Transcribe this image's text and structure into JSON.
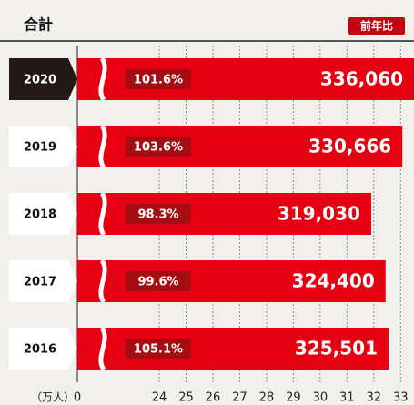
{
  "chart_data": {
    "type": "bar",
    "orientation": "horizontal",
    "title": "合計",
    "badge": "前年比",
    "categories": [
      "2020",
      "2019",
      "2018",
      "2017",
      "2016"
    ],
    "values": [
      33.606,
      33.0666,
      31.903,
      32.44,
      32.5501
    ],
    "value_labels": [
      "336,060",
      "330,666",
      "319,030",
      "324,400",
      "325,501"
    ],
    "ratios": [
      101.6,
      103.6,
      98.3,
      99.6,
      105.1
    ],
    "ratio_labels": [
      "101.6%",
      "103.6%",
      "98.3%",
      "99.6%",
      "105.1%"
    ],
    "highlight_index": 0,
    "color": "#e60012",
    "x_label": "（万人）",
    "xlim": [
      0,
      33.5
    ],
    "xticks": [
      0,
      24,
      25,
      26,
      27,
      28,
      29,
      30,
      31,
      32,
      33
    ],
    "grid": true
  }
}
